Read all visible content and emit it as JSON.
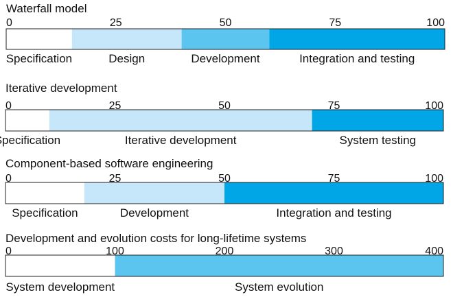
{
  "chart_data": [
    {
      "type": "bar",
      "title": "Waterfall model",
      "axis_max": 100,
      "ticks": [
        {
          "value": 0,
          "label": "0"
        },
        {
          "value": 25,
          "label": "25"
        },
        {
          "value": 50,
          "label": "50"
        },
        {
          "value": 75,
          "label": "75"
        },
        {
          "value": 100,
          "label": "100"
        }
      ],
      "segments": [
        {
          "label": "Specification",
          "start": 0,
          "end": 15,
          "color": "#ffffff"
        },
        {
          "label": "Design",
          "start": 15,
          "end": 40,
          "color": "#c6e7fa"
        },
        {
          "label": "Development",
          "start": 40,
          "end": 60,
          "color": "#5bc5f0"
        },
        {
          "label": "Integration and testing",
          "start": 60,
          "end": 100,
          "color": "#00a6e6"
        }
      ]
    },
    {
      "type": "bar",
      "title": "Iterative development",
      "axis_max": 100,
      "ticks": [
        {
          "value": 0,
          "label": "0"
        },
        {
          "value": 25,
          "label": "25"
        },
        {
          "value": 50,
          "label": "50"
        },
        {
          "value": 75,
          "label": "75"
        },
        {
          "value": 100,
          "label": "100"
        }
      ],
      "segments": [
        {
          "label": "Specification",
          "start": 0,
          "end": 10,
          "color": "#ffffff"
        },
        {
          "label": "Iterative development",
          "start": 10,
          "end": 70,
          "color": "#c6e7fa"
        },
        {
          "label": "System testing",
          "start": 70,
          "end": 100,
          "color": "#00a6e6"
        }
      ]
    },
    {
      "type": "bar",
      "title": "Component-based software engineering",
      "axis_max": 100,
      "ticks": [
        {
          "value": 0,
          "label": "0"
        },
        {
          "value": 25,
          "label": "25"
        },
        {
          "value": 50,
          "label": "50"
        },
        {
          "value": 75,
          "label": "75"
        },
        {
          "value": 100,
          "label": "100"
        }
      ],
      "segments": [
        {
          "label": "Specification",
          "start": 0,
          "end": 18,
          "color": "#ffffff"
        },
        {
          "label": "Development",
          "start": 18,
          "end": 50,
          "color": "#c6e7fa"
        },
        {
          "label": "Integration and testing",
          "start": 50,
          "end": 100,
          "color": "#00a6e6"
        }
      ]
    },
    {
      "type": "bar",
      "title": "Development and evolution costs for long-lifetime systems",
      "axis_max": 400,
      "ticks": [
        {
          "value": 0,
          "label": "0"
        },
        {
          "value": 100,
          "label": "100"
        },
        {
          "value": 200,
          "label": "200"
        },
        {
          "value": 300,
          "label": "300"
        },
        {
          "value": 400,
          "label": "400"
        }
      ],
      "segments": [
        {
          "label": "System development",
          "start": 0,
          "end": 100,
          "color": "#ffffff"
        },
        {
          "label": "System evolution",
          "start": 100,
          "end": 400,
          "color": "#5bc5f0"
        }
      ]
    }
  ]
}
